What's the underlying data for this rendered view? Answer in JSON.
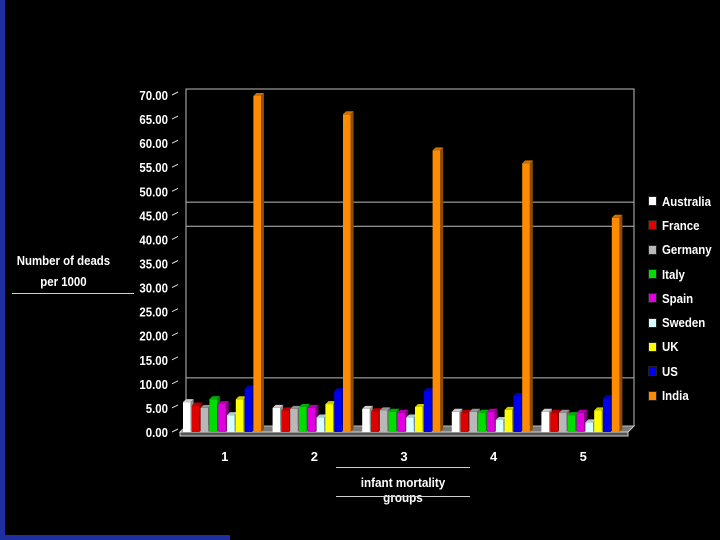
{
  "chart_data": {
    "type": "bar",
    "title": "",
    "xlabel": "infant mortality groups",
    "ylabel": "Number of deads per 1000",
    "ylim": [
      0,
      70
    ],
    "yticks": [
      "0.00",
      "5.00",
      "10.00",
      "15.00",
      "20.00",
      "25.00",
      "30.00",
      "35.00",
      "40.00",
      "45.00",
      "50.00",
      "55.00",
      "60.00",
      "65.00",
      "70.00"
    ],
    "categories": [
      "1",
      "2",
      "3",
      "4",
      "5"
    ],
    "legend_position": "right",
    "series": [
      {
        "name": "Australia",
        "color": "#ffffff",
        "values": [
          6.2,
          5.0,
          4.8,
          4.2,
          4.2
        ]
      },
      {
        "name": "France",
        "color": "#e00000",
        "values": [
          5.5,
          4.5,
          4.3,
          4.0,
          4.0
        ]
      },
      {
        "name": "Germany",
        "color": "#b8b8b8",
        "values": [
          5.0,
          4.8,
          4.5,
          4.2,
          4.0
        ]
      },
      {
        "name": "Italy",
        "color": "#00dd00",
        "values": [
          6.8,
          5.2,
          4.2,
          4.0,
          3.5
        ]
      },
      {
        "name": "Spain",
        "color": "#e000e0",
        "values": [
          5.8,
          5.0,
          4.0,
          4.2,
          4.0
        ]
      },
      {
        "name": "Sweden",
        "color": "#d8ffff",
        "values": [
          3.5,
          3.0,
          3.0,
          2.5,
          2.0
        ]
      },
      {
        "name": "UK",
        "color": "#ffff00",
        "values": [
          6.8,
          5.8,
          5.2,
          4.6,
          4.5
        ]
      },
      {
        "name": "US",
        "color": "#0000ee",
        "values": [
          9.0,
          8.5,
          8.5,
          7.5,
          7.0
        ]
      },
      {
        "name": "India",
        "color": "#ff8c00",
        "values": [
          69.8,
          66.0,
          58.5,
          55.8,
          44.5
        ]
      }
    ]
  }
}
